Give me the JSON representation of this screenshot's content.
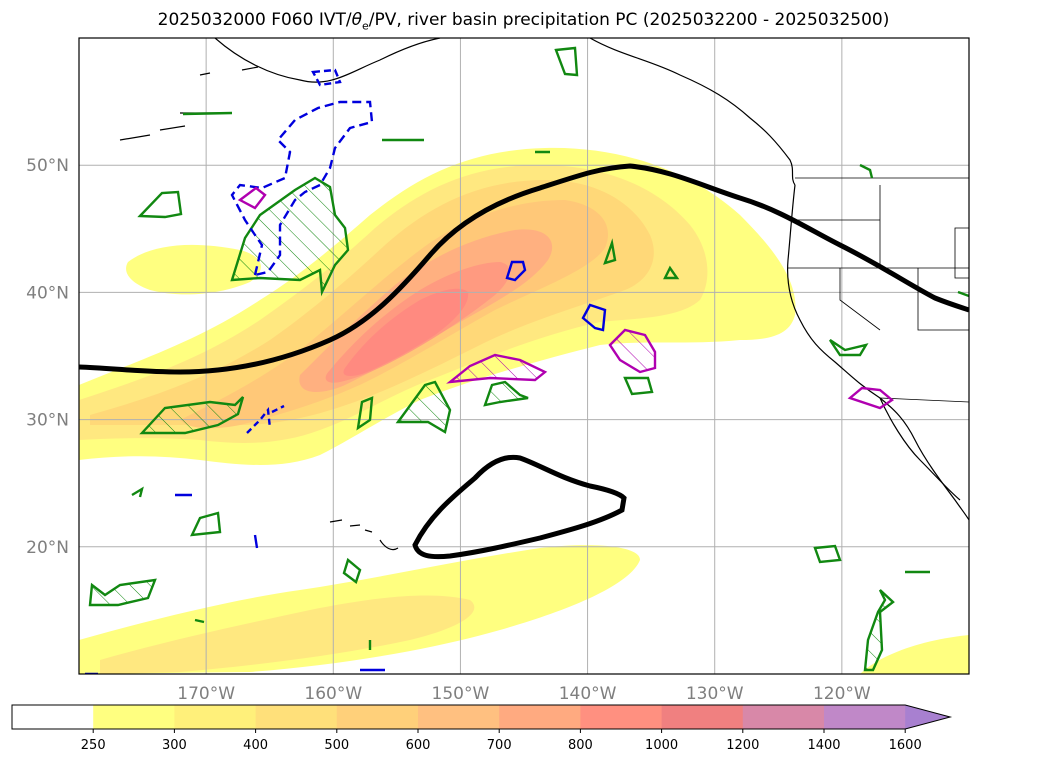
{
  "title": {
    "prefix": "2025032000 F060 IVT/",
    "theta": "θ",
    "sub": "e",
    "suffix": "/PV, river basin precipitation PC (2025032200 - 2025032500)"
  },
  "map": {
    "lon_range": [
      -180,
      -110
    ],
    "lat_range": [
      10,
      60
    ],
    "lat_ticks": [
      {
        "value": 50,
        "label": "50°N"
      },
      {
        "value": 40,
        "label": "40°N"
      },
      {
        "value": 30,
        "label": "30°N"
      },
      {
        "value": 20,
        "label": "20°N"
      }
    ],
    "lon_ticks": [
      {
        "value": -170,
        "label": "170°W"
      },
      {
        "value": -160,
        "label": "160°W"
      },
      {
        "value": -150,
        "label": "150°W"
      },
      {
        "value": -140,
        "label": "140°W"
      },
      {
        "value": -130,
        "label": "130°W"
      },
      {
        "value": -120,
        "label": "120°W"
      }
    ],
    "grid": true
  },
  "colorbar": {
    "levels": [
      "250",
      "300",
      "400",
      "500",
      "600",
      "700",
      "800",
      "1000",
      "1200",
      "1400",
      "1600"
    ],
    "colors": [
      "#ffff80",
      "#fff07a",
      "#ffe07a",
      "#ffd07a",
      "#ffc080",
      "#ffaa80",
      "#ff9080",
      "#f08080",
      "#d888a8",
      "#c088c8",
      "#a880d0"
    ],
    "extend": "max"
  }
}
